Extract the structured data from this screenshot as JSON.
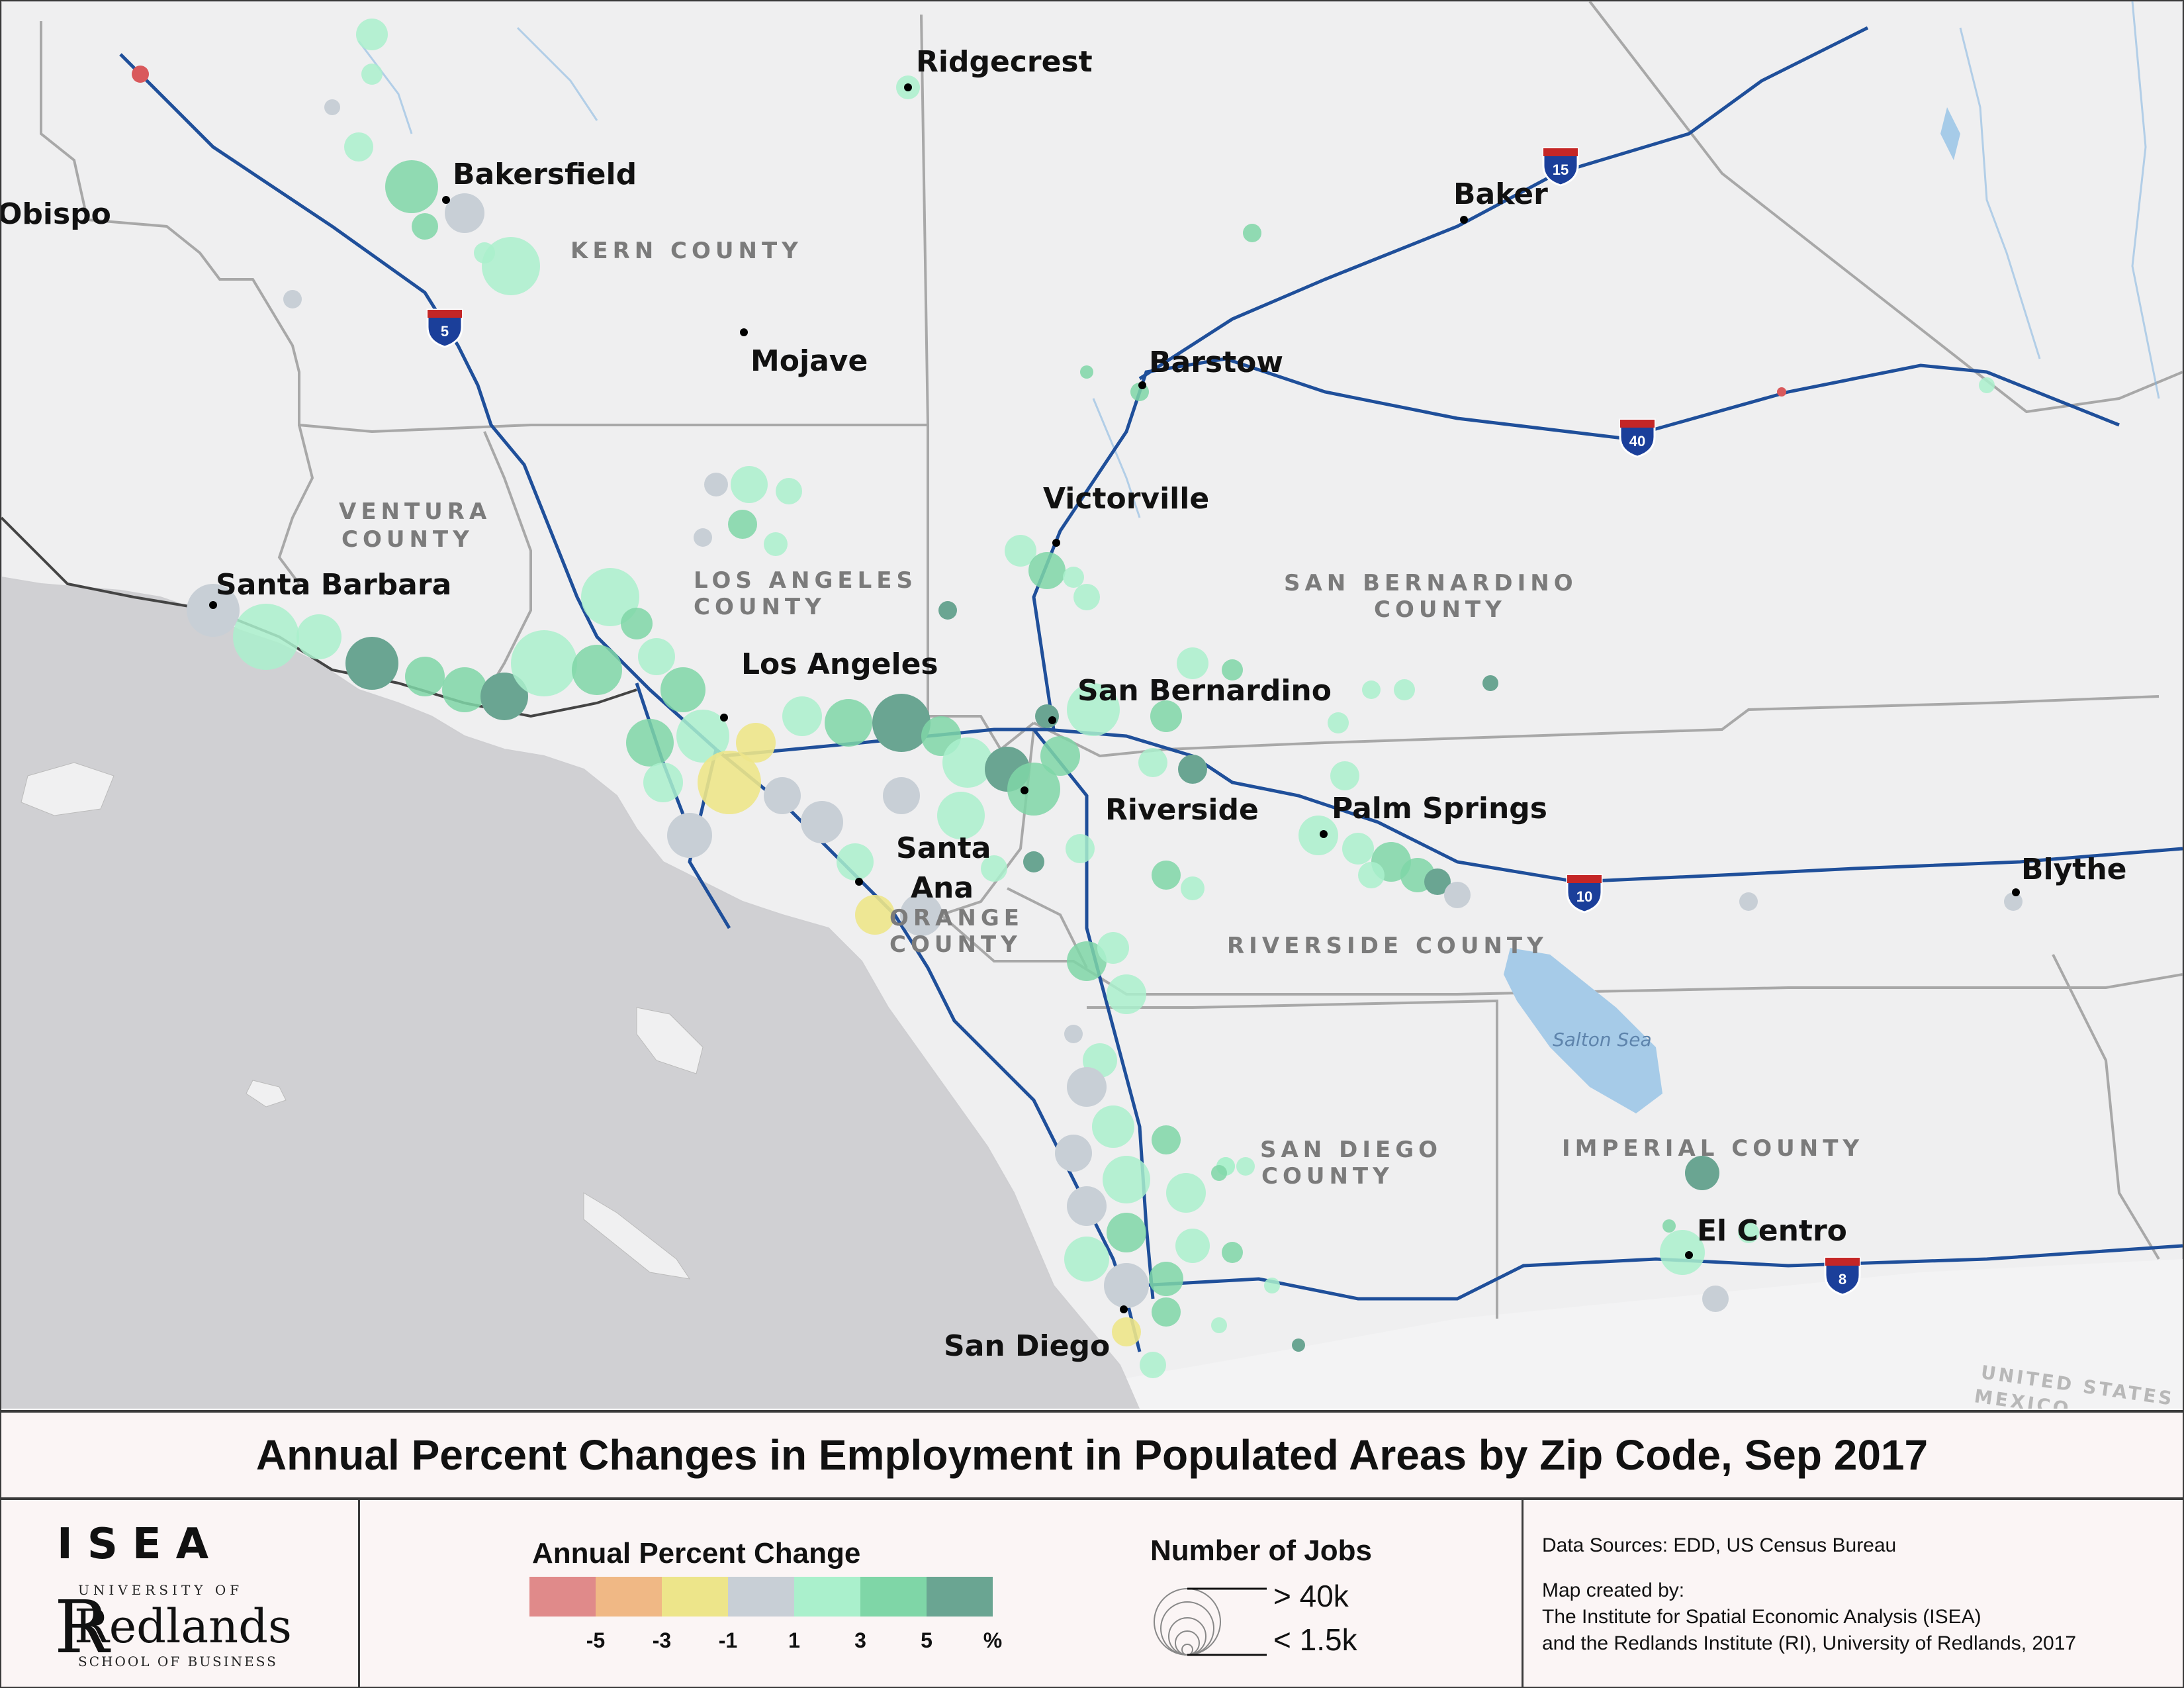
{
  "title": "Annual Percent Changes in Employment in Populated Areas by Zip Code, Sep 2017",
  "map": {
    "cities": [
      {
        "name": "Ridgecrest"
      },
      {
        "name": "Bakersfield"
      },
      {
        "name": "Obispo"
      },
      {
        "name": "Baker"
      },
      {
        "name": "Mojave"
      },
      {
        "name": "Barstow"
      },
      {
        "name": "Victorville"
      },
      {
        "name": "Santa Barbara"
      },
      {
        "name": "Los Angeles"
      },
      {
        "name": "San Bernardino"
      },
      {
        "name": "Riverside"
      },
      {
        "name": "Palm Springs"
      },
      {
        "name": "Santa"
      },
      {
        "name": "Ana"
      },
      {
        "name": "Blythe"
      },
      {
        "name": "El Centro"
      },
      {
        "name": "San Diego"
      }
    ],
    "counties": [
      {
        "line1": "KERN COUNTY",
        "line2": ""
      },
      {
        "line1": "VENTURA",
        "line2": "COUNTY"
      },
      {
        "line1": "LOS ANGELES",
        "line2": "COUNTY"
      },
      {
        "line1": "SAN BERNARDINO",
        "line2": "COUNTY"
      },
      {
        "line1": "ORANGE",
        "line2": "COUNTY"
      },
      {
        "line1": "RIVERSIDE COUNTY",
        "line2": ""
      },
      {
        "line1": "SAN DIEGO",
        "line2": "COUNTY"
      },
      {
        "line1": "IMPERIAL COUNTY",
        "line2": ""
      }
    ],
    "water_label": "Salton Sea",
    "border_labels": [
      "UNITED STATES",
      "MEXICO"
    ],
    "interstates": [
      "5",
      "15",
      "40",
      "10",
      "8"
    ],
    "colors": {
      "ocean": "#d0d0d3",
      "land": "#efeff0",
      "highway": "#1f4f9a",
      "water": "#a6cbe8",
      "county_line": "#a8a8a8"
    }
  },
  "legend": {
    "percent_title": "Annual Percent Change",
    "ramp_colors": [
      "#e08a8a",
      "#f0b885",
      "#ede58a",
      "#c8cfd6",
      "#aaf0cc",
      "#7fd6a7",
      "#6aa592"
    ],
    "ramp_labels": [
      "-5",
      "-3",
      "-1",
      "1",
      "3",
      "5",
      "%"
    ],
    "jobs_title": "Number of Jobs",
    "jobs_max": "> 40k",
    "jobs_min": "< 1.5k"
  },
  "logo": {
    "isea": "ISEA",
    "university_of": "UNIVERSITY OF",
    "redlands": "Redlands",
    "school": "SCHOOL OF BUSINESS"
  },
  "sources": {
    "line1": "Data Sources: EDD, US Census Bureau",
    "line2": "Map created by:",
    "line3": "The Institute for Spatial Economic Analysis (ISEA)",
    "line4": "and the Redlands Institute (RI), University of Redlands, 2017"
  }
}
